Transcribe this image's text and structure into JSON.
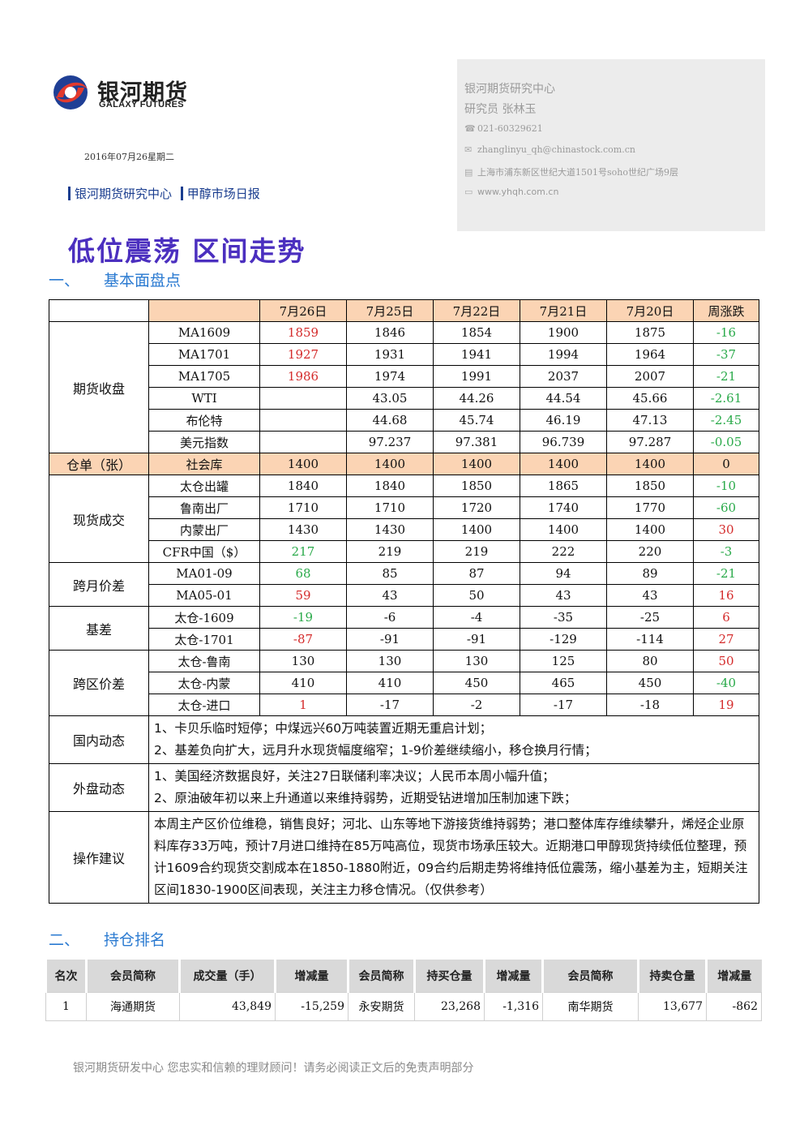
{
  "logo": {
    "cn": "银河期货",
    "en": "GALAXY FUTURES"
  },
  "date": "2016年07月26星期二",
  "crumbs": [
    "银河期货研究中心",
    "甲醇市场日报"
  ],
  "contact": {
    "org": "银河期货研究中心",
    "analyst": "研究员  张林玉",
    "phone": "021-60329621",
    "email": "zhanglinyu_qh@chinastock.com.cn",
    "address": "上海市浦东新区世纪大道1501号soho世纪广场9层",
    "website": "www.yhqh.com.cn"
  },
  "headline": "低位震荡 区间走势",
  "section1": {
    "num": "一、",
    "title": "基本面盘点"
  },
  "section2": {
    "num": "二、",
    "title": "持仓排名"
  },
  "table": {
    "headers": [
      "7月26日",
      "7月25日",
      "7月22日",
      "7月21日",
      "7月20日",
      "周涨跌"
    ],
    "groups": [
      {
        "category": "期货收盘",
        "rows": [
          {
            "name": "MA1609",
            "values": [
              "1859",
              "1846",
              "1854",
              "1900",
              "1875",
              "-16"
            ],
            "colors": [
              "red",
              "",
              "",
              "",
              "",
              "green"
            ]
          },
          {
            "name": "MA1701",
            "values": [
              "1927",
              "1931",
              "1941",
              "1994",
              "1964",
              "-37"
            ],
            "colors": [
              "red",
              "",
              "",
              "",
              "",
              "green"
            ]
          },
          {
            "name": "MA1705",
            "values": [
              "1986",
              "1974",
              "1991",
              "2037",
              "2007",
              "-21"
            ],
            "colors": [
              "red",
              "",
              "",
              "",
              "",
              "green"
            ]
          },
          {
            "name": "WTI",
            "values": [
              "",
              "43.05",
              "44.26",
              "44.54",
              "45.66",
              "-2.61"
            ],
            "colors": [
              "",
              "",
              "",
              "",
              "",
              "green"
            ]
          },
          {
            "name": "布伦特",
            "values": [
              "",
              "44.68",
              "45.74",
              "46.19",
              "47.13",
              "-2.45"
            ],
            "colors": [
              "",
              "",
              "",
              "",
              "",
              "green"
            ]
          },
          {
            "name": "美元指数",
            "values": [
              "",
              "97.237",
              "97.381",
              "96.739",
              "97.287",
              "-0.05"
            ],
            "colors": [
              "",
              "",
              "",
              "",
              "",
              "green"
            ]
          }
        ]
      },
      {
        "category": "仓单（张）",
        "highlight": true,
        "rows": [
          {
            "name": "社会库",
            "values": [
              "1400",
              "1400",
              "1400",
              "1400",
              "1400",
              "0"
            ],
            "colors": [
              "",
              "",
              "",
              "",
              "",
              ""
            ]
          }
        ]
      },
      {
        "category": "现货成交",
        "rows": [
          {
            "name": "太仓出罐",
            "values": [
              "1840",
              "1840",
              "1850",
              "1865",
              "1850",
              "-10"
            ],
            "colors": [
              "",
              "",
              "",
              "",
              "",
              "green"
            ]
          },
          {
            "name": "鲁南出厂",
            "values": [
              "1710",
              "1710",
              "1720",
              "1740",
              "1770",
              "-60"
            ],
            "colors": [
              "",
              "",
              "",
              "",
              "",
              "green"
            ]
          },
          {
            "name": "内蒙出厂",
            "values": [
              "1430",
              "1430",
              "1400",
              "1400",
              "1400",
              "30"
            ],
            "colors": [
              "",
              "",
              "",
              "",
              "",
              "red"
            ]
          },
          {
            "name": "CFR中国（$）",
            "values": [
              "217",
              "219",
              "219",
              "222",
              "220",
              "-3"
            ],
            "colors": [
              "green",
              "",
              "",
              "",
              "",
              "green"
            ]
          }
        ]
      },
      {
        "category": "跨月价差",
        "rows": [
          {
            "name": "MA01-09",
            "values": [
              "68",
              "85",
              "87",
              "94",
              "89",
              "-21"
            ],
            "colors": [
              "green",
              "",
              "",
              "",
              "",
              "green"
            ]
          },
          {
            "name": "MA05-01",
            "values": [
              "59",
              "43",
              "50",
              "43",
              "43",
              "16"
            ],
            "colors": [
              "red",
              "",
              "",
              "",
              "",
              "red"
            ]
          }
        ]
      },
      {
        "category": "基差",
        "rows": [
          {
            "name": "太仓-1609",
            "values": [
              "-19",
              "-6",
              "-4",
              "-35",
              "-25",
              "6"
            ],
            "colors": [
              "green",
              "",
              "",
              "",
              "",
              "red"
            ]
          },
          {
            "name": "太仓-1701",
            "values": [
              "-87",
              "-91",
              "-91",
              "-129",
              "-114",
              "27"
            ],
            "colors": [
              "red",
              "",
              "",
              "",
              "",
              "red"
            ]
          }
        ]
      },
      {
        "category": "跨区价差",
        "rows": [
          {
            "name": "太仓-鲁南",
            "values": [
              "130",
              "130",
              "130",
              "125",
              "80",
              "50"
            ],
            "colors": [
              "",
              "",
              "",
              "",
              "",
              "red"
            ]
          },
          {
            "name": "太仓-内蒙",
            "values": [
              "410",
              "410",
              "450",
              "465",
              "450",
              "-40"
            ],
            "colors": [
              "",
              "",
              "",
              "",
              "",
              "green"
            ]
          },
          {
            "name": "太仓-进口",
            "values": [
              "1",
              "-17",
              "-2",
              "-17",
              "-18",
              "19"
            ],
            "colors": [
              "red",
              "",
              "",
              "",
              "",
              "red"
            ]
          }
        ]
      }
    ],
    "text_rows": [
      {
        "category": "国内动态",
        "lines": [
          "1、卡贝乐临时短停；中煤远兴60万吨装置近期无重启计划；",
          "2、基差负向扩大，远月升水现货幅度缩窄；1-9价差继续缩小，移仓换月行情；"
        ]
      },
      {
        "category": "外盘动态",
        "lines": [
          "1、美国经济数据良好，关注27日联储利率决议；人民币本周小幅升值；",
          "2、原油破年初以来上升通道以来维持弱势，近期受钻进增加压制加速下跌；"
        ]
      },
      {
        "category": "操作建议",
        "lines": [
          "本周主产区价位维稳，销售良好；河北、山东等地下游接货维持弱势；港口整体库存维续攀升，烯烃企业原料库存33万吨，预计7月进口维持在85万吨高位，现货市场承压较大。近期港口甲醇现货持续低位整理，预计1609合约现货交割成本在1850-1880附近，09合约后期走势将维持低位震荡，缩小基差为主，短期关注区间1830-1900区间表现，关注主力移仓情况。（仅供参考）"
        ]
      }
    ]
  },
  "positions": {
    "headers": [
      "名次",
      "会员简称",
      "成交量（手）",
      "增减量",
      "会员简称",
      "持买仓量",
      "增减量",
      "会员简称",
      "持卖仓量",
      "增减量"
    ],
    "rows": [
      [
        "1",
        "海通期货",
        "43,849",
        "-15,259",
        "永安期货",
        "23,268",
        "-1,316",
        "南华期货",
        "13,677",
        "-862"
      ]
    ]
  },
  "footer": "银河期货研发中心 您忠实和信赖的理财顾问！请务必阅读正文后的免责声明部分",
  "colors": {
    "up": "#d42b2b",
    "down": "#2aaa4a",
    "header_bg": "#fbd4b4",
    "headline": "#4b2fbf",
    "section": "#2a7ad1"
  }
}
